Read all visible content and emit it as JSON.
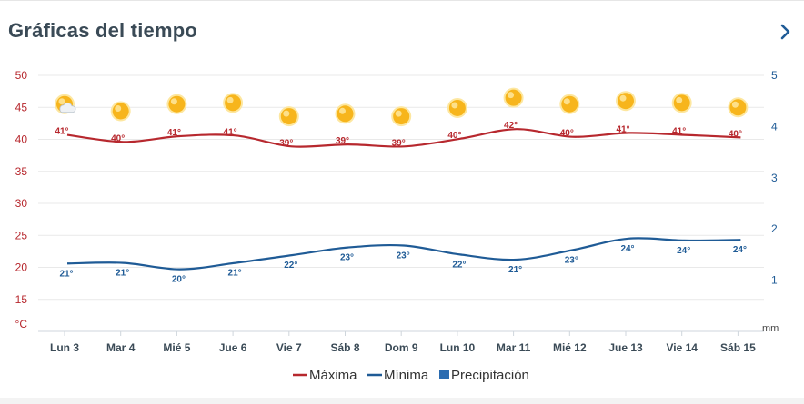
{
  "header": {
    "title": "Gráficas del tiempo",
    "next_icon": "chevron-right-icon"
  },
  "colors": {
    "max": "#b7282e",
    "min": "#1f5b96",
    "precip": "#2a6bb0",
    "sun": "#f7b51c",
    "grid": "#e9e9e9",
    "axis_text": "#444444"
  },
  "chart_data": {
    "type": "line",
    "categories": [
      "Lun 3",
      "Mar 4",
      "Mié 5",
      "Jue 6",
      "Vie 7",
      "Sáb 8",
      "Dom 9",
      "Lun 10",
      "Mar 11",
      "Mié 12",
      "Jue 13",
      "Vie 14",
      "Sáb 15"
    ],
    "series": [
      {
        "name": "Máxima",
        "axis": "left",
        "color": "#b7282e",
        "values": [
          41,
          40,
          41,
          41,
          39,
          39,
          39,
          40,
          42,
          40,
          41,
          41,
          40
        ],
        "labels": [
          "41°",
          "40°",
          "41°",
          "41°",
          "39°",
          "39°",
          "39°",
          "40°",
          "42°",
          "40°",
          "41°",
          "41°",
          "40°"
        ],
        "curve": [
          40.7,
          39.6,
          40.5,
          40.6,
          38.9,
          39.2,
          38.9,
          40.1,
          41.6,
          40.4,
          41.0,
          40.7,
          40.3
        ]
      },
      {
        "name": "Mínima",
        "axis": "left",
        "color": "#1f5b96",
        "values": [
          21,
          21,
          20,
          21,
          22,
          23,
          23,
          22,
          21,
          23,
          24,
          24,
          24
        ],
        "labels": [
          "21°",
          "21°",
          "20°",
          "21°",
          "22°",
          "23°",
          "23°",
          "22°",
          "21°",
          "23°",
          "24°",
          "24°",
          "24°"
        ],
        "curve": [
          20.6,
          20.7,
          19.7,
          20.7,
          21.9,
          23.1,
          23.4,
          22.0,
          21.2,
          22.7,
          24.5,
          24.2,
          24.3
        ]
      },
      {
        "name": "Precipitación",
        "axis": "right",
        "color": "#2a6bb0",
        "values": [
          0,
          0,
          0,
          0,
          0,
          0,
          0,
          0,
          0,
          0,
          0,
          0,
          0
        ]
      }
    ],
    "icons": [
      "sun-cloud-icon",
      "sun-icon",
      "sun-icon",
      "sun-icon",
      "sun-icon",
      "sun-icon",
      "sun-icon",
      "sun-icon",
      "sun-icon",
      "sun-icon",
      "sun-icon",
      "sun-icon",
      "sun-icon"
    ],
    "icon_level": [
      45.5,
      44.4,
      45.5,
      45.7,
      43.6,
      44.0,
      43.6,
      44.9,
      46.5,
      45.5,
      46.0,
      45.7,
      45.0
    ],
    "y_left": {
      "unit": "°C",
      "ticks": [
        15,
        20,
        25,
        30,
        35,
        40,
        45,
        50
      ],
      "range": [
        10,
        50
      ]
    },
    "y_right": {
      "unit": "mm",
      "ticks": [
        1,
        2,
        3,
        4,
        5
      ],
      "range": [
        0,
        5
      ]
    },
    "legend": {
      "position": "bottom-center",
      "items": [
        {
          "label": "Máxima",
          "color": "#b7282e",
          "symbol": "line"
        },
        {
          "label": "Mínima",
          "color": "#1f5b96",
          "symbol": "line"
        },
        {
          "label": "Precipitación",
          "color": "#2a6bb0",
          "symbol": "square"
        }
      ]
    },
    "grid": true
  }
}
